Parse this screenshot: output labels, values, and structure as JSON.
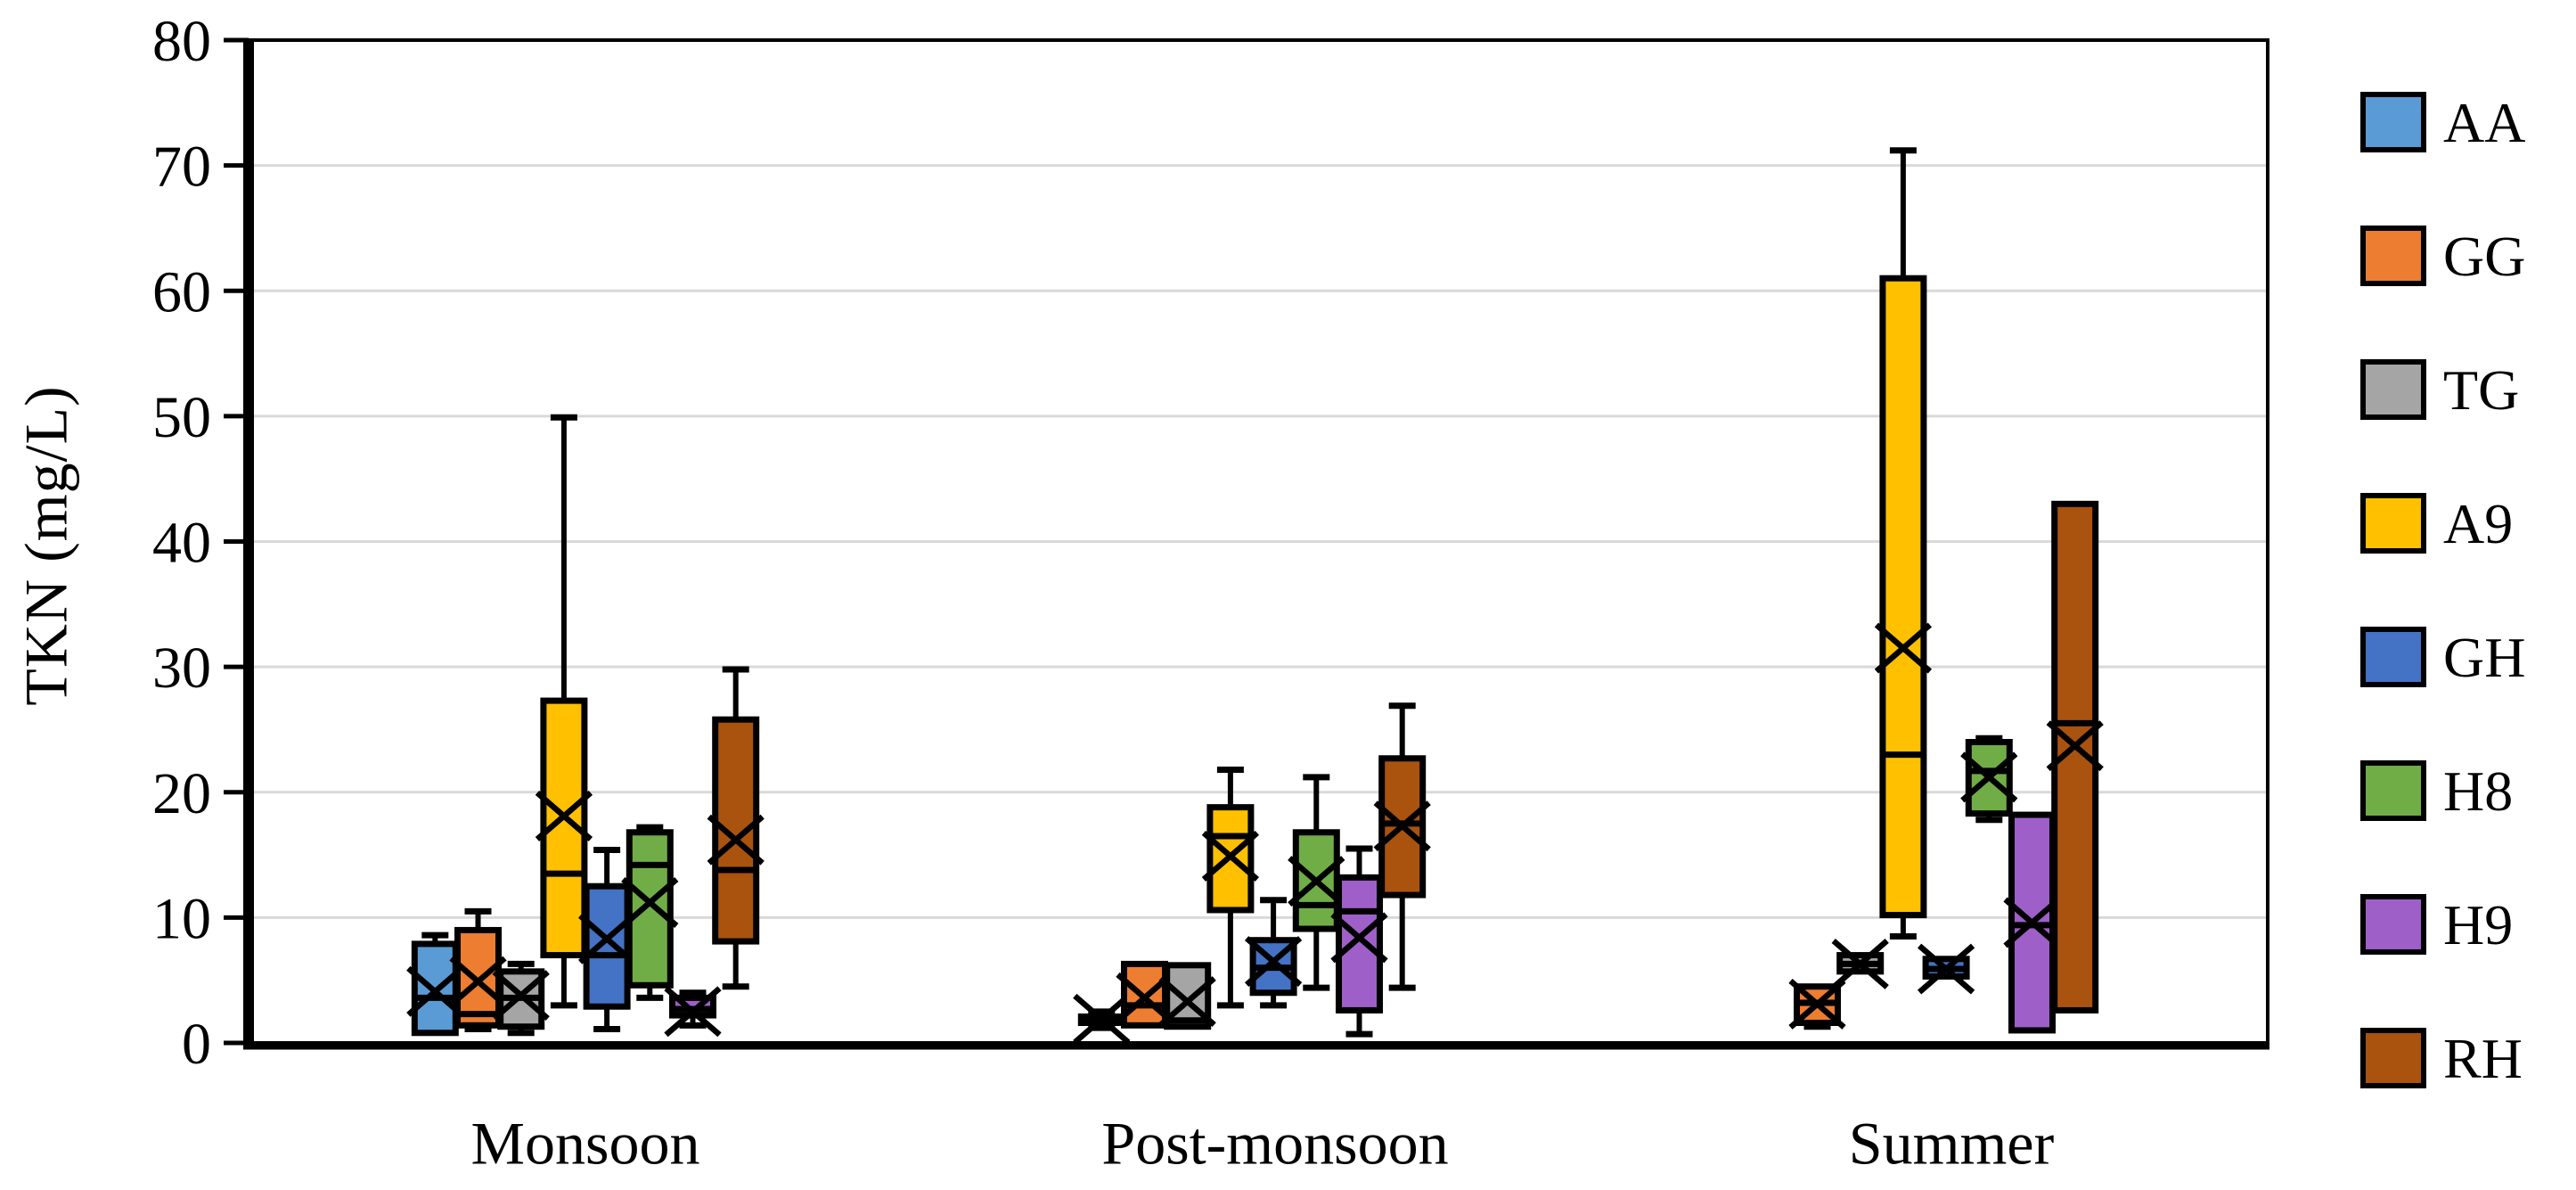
{
  "figure": {
    "background": "#FFFFFF",
    "frame_color": "#000000",
    "grid_color": "#D9D9D9"
  },
  "chart_data": {
    "type": "boxplot",
    "title": "",
    "xlabel": "",
    "ylabel": "TKN (mg/L)",
    "ylim": [
      0,
      80
    ],
    "y_ticks": [
      0,
      10,
      20,
      30,
      40,
      50,
      60,
      70,
      80
    ],
    "grid": "horizontal",
    "legend_position": "right",
    "categories": [
      "Monsoon",
      "Post-monsoon",
      "Summer"
    ],
    "marker_notes": "x = mean, horizontal bar = median, box = IQR, whiskers = min/max",
    "series": [
      {
        "name": "AA",
        "color": "#5B9BD5",
        "stats": [
          {
            "min": 0.6,
            "q1": 0.8,
            "median": 3.6,
            "q3": 7.9,
            "max": 8.6,
            "mean": 4.1
          },
          {
            "min": 1.2,
            "q1": 1.6,
            "median": 1.8,
            "q3": 2.1,
            "max": 2.5,
            "mean": 1.9
          },
          null
        ]
      },
      {
        "name": "GG",
        "color": "#ED7D31",
        "stats": [
          {
            "min": 1.1,
            "q1": 1.4,
            "median": 2.3,
            "q3": 9.0,
            "max": 10.5,
            "mean": 4.9
          },
          {
            "min": 1.2,
            "q1": 1.4,
            "median": 3.0,
            "q3": 6.3,
            "max": 6.5,
            "mean": 3.6
          },
          {
            "min": 1.3,
            "q1": 1.6,
            "median": 3.2,
            "q3": 4.5,
            "max": 4.7,
            "mean": 3.1
          }
        ]
      },
      {
        "name": "TG",
        "color": "#A5A5A5",
        "stats": [
          {
            "min": 0.8,
            "q1": 1.3,
            "median": 3.6,
            "q3": 5.7,
            "max": 6.3,
            "mean": 3.8
          },
          {
            "min": 1.1,
            "q1": 1.3,
            "median": 1.8,
            "q3": 6.2,
            "max": 6.4,
            "mean": 3.3
          },
          {
            "min": 5.5,
            "q1": 5.7,
            "median": 6.3,
            "q3": 7.0,
            "max": 7.2,
            "mean": 6.3
          }
        ]
      },
      {
        "name": "A9",
        "color": "#FFC000",
        "stats": [
          {
            "min": 3.0,
            "q1": 7.0,
            "median": 13.5,
            "q3": 27.3,
            "max": 49.9,
            "mean": 18.1
          },
          {
            "min": 3.0,
            "q1": 10.6,
            "median": 16.5,
            "q3": 18.8,
            "max": 21.8,
            "mean": 14.9
          },
          {
            "min": 8.5,
            "q1": 10.2,
            "median": 23.0,
            "q3": 61.0,
            "max": 71.2,
            "mean": 31.5
          }
        ]
      },
      {
        "name": "GH",
        "color": "#4472C4",
        "stats": [
          {
            "min": 1.1,
            "q1": 2.9,
            "median": 7.0,
            "q3": 12.5,
            "max": 15.4,
            "mean": 8.3
          },
          {
            "min": 3.0,
            "q1": 4.0,
            "median": 6.0,
            "q3": 8.2,
            "max": 11.4,
            "mean": 6.5
          },
          {
            "min": 5.1,
            "q1": 5.3,
            "median": 5.9,
            "q3": 6.7,
            "max": 6.9,
            "mean": 5.9
          }
        ]
      },
      {
        "name": "H8",
        "color": "#70AD47",
        "stats": [
          {
            "min": 3.6,
            "q1": 4.6,
            "median": 14.2,
            "q3": 16.8,
            "max": 17.2,
            "mean": 11.2
          },
          {
            "min": 4.4,
            "q1": 9.1,
            "median": 11.0,
            "q3": 16.8,
            "max": 21.2,
            "mean": 12.9
          },
          {
            "min": 17.8,
            "q1": 18.3,
            "median": 21.7,
            "q3": 24.0,
            "max": 24.3,
            "mean": 21.2
          }
        ]
      },
      {
        "name": "H9",
        "color": "#9E5FC8",
        "stats": [
          {
            "min": 1.4,
            "q1": 2.2,
            "median": 2.7,
            "q3": 3.6,
            "max": 4.0,
            "mean": 2.5
          },
          {
            "min": 0.7,
            "q1": 2.6,
            "median": 10.5,
            "q3": 13.2,
            "max": 15.5,
            "mean": 8.4
          },
          {
            "min": 0.8,
            "q1": 1.0,
            "median": 9.4,
            "q3": 18.2,
            "max": 18.4,
            "mean": 9.6
          }
        ]
      },
      {
        "name": "RH",
        "color": "#A9530F",
        "stats": [
          {
            "min": 4.5,
            "q1": 8.1,
            "median": 13.8,
            "q3": 25.8,
            "max": 29.8,
            "mean": 16.2
          },
          {
            "min": 4.4,
            "q1": 11.8,
            "median": 17.5,
            "q3": 22.7,
            "max": 26.9,
            "mean": 17.3
          },
          {
            "min": 2.4,
            "q1": 2.6,
            "median": 25.5,
            "q3": 43.0,
            "max": 43.2,
            "mean": 23.7
          }
        ]
      }
    ]
  }
}
